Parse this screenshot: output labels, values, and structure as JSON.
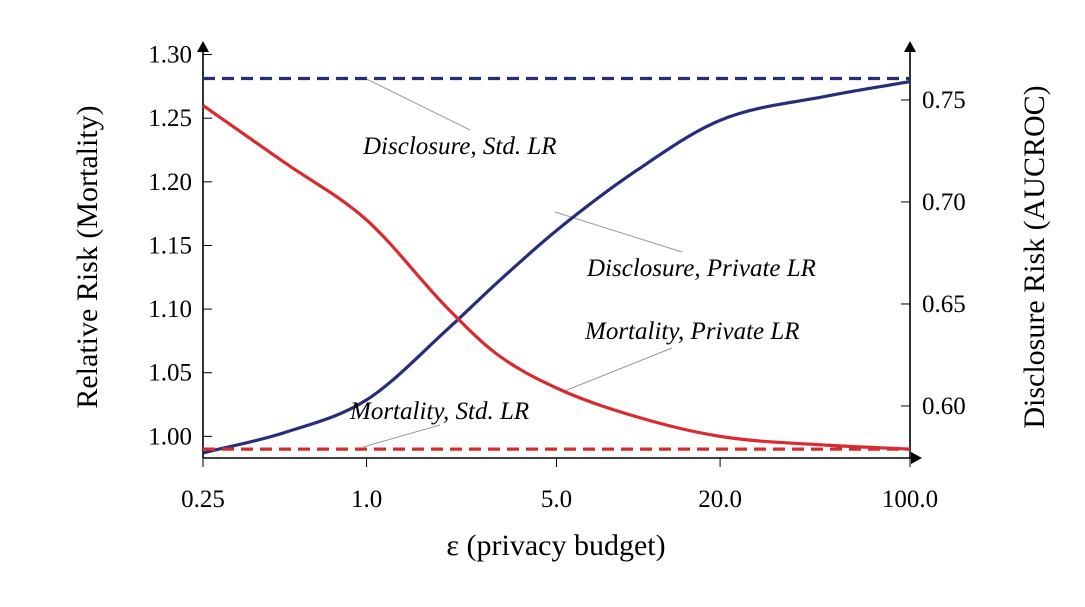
{
  "chart_data": {
    "type": "line",
    "xlabel": "ε (privacy budget)",
    "ylabel_left": "Relative Risk (Mortality)",
    "ylabel_right": "Disclosure Risk (AUCROC)",
    "x_scale": "log",
    "x_ticks": [
      0.25,
      1.0,
      5.0,
      20.0,
      100.0
    ],
    "x_tick_labels": [
      "0.25",
      "1.0",
      "5.0",
      "20.0",
      "100.0"
    ],
    "xlim": [
      0.25,
      100.0
    ],
    "ylim_left": [
      0.983,
      1.302
    ],
    "ylim_right": [
      0.5745,
      0.7735
    ],
    "y_left_ticks": [
      1.0,
      1.05,
      1.1,
      1.15,
      1.2,
      1.25,
      1.3
    ],
    "y_left_tick_labels": [
      "1.00",
      "1.05",
      "1.10",
      "1.15",
      "1.20",
      "1.25",
      "1.30"
    ],
    "y_right_ticks": [
      0.6,
      0.65,
      0.7,
      0.75
    ],
    "y_right_tick_labels": [
      "0.60",
      "0.65",
      "0.70",
      "0.75"
    ],
    "grid": false,
    "legend": "none",
    "series": [
      {
        "axis": "right",
        "style": "dashed",
        "color": "#262d7a",
        "x": [
          0.25,
          100.0
        ],
        "values": [
          0.7605,
          0.7605
        ]
      },
      {
        "axis": "right",
        "style": "solid",
        "color": "#262d7a",
        "x": [
          0.25,
          0.5,
          1.0,
          2.0,
          3.0,
          5.0,
          10.0,
          20.0,
          50.0,
          100.0
        ],
        "values": [
          0.577,
          0.587,
          0.603,
          0.638,
          0.66,
          0.686,
          0.716,
          0.74,
          0.752,
          0.759
        ]
      },
      {
        "axis": "left",
        "style": "solid",
        "color": "#d92b2f",
        "x": [
          0.25,
          0.5,
          1.0,
          2.0,
          3.0,
          5.0,
          10.0,
          20.0,
          50.0,
          100.0
        ],
        "values": [
          1.26,
          1.215,
          1.17,
          1.1,
          1.065,
          1.038,
          1.015,
          1.0,
          0.993,
          0.99
        ]
      },
      {
        "axis": "left",
        "style": "dashed",
        "color": "#d92b2f",
        "x": [
          0.25,
          100.0
        ],
        "values": [
          0.99,
          0.99
        ]
      }
    ],
    "annotations": [
      {
        "text": "Disclosure, Std. LR",
        "series": 0
      },
      {
        "text": "Disclosure, Private LR",
        "series": 1
      },
      {
        "text": "Mortality, Private LR",
        "series": 2
      },
      {
        "text": "Mortality, Std. LR",
        "series": 3
      }
    ]
  }
}
